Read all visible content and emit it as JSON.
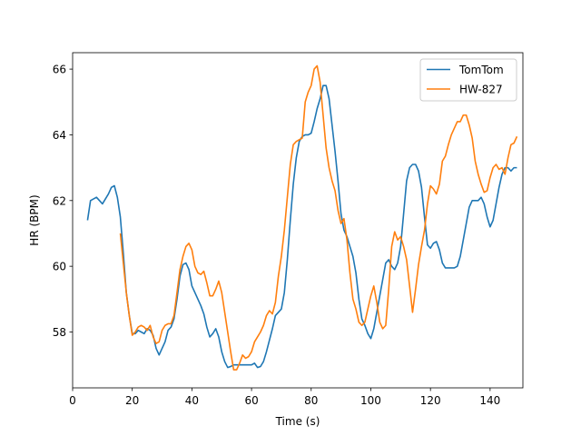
{
  "chart_data": {
    "type": "line",
    "title": "",
    "xlabel": "Time (s)",
    "ylabel": "HR (BPM)",
    "xlim": [
      0,
      151
    ],
    "ylim": [
      56.3,
      66.5
    ],
    "xticks": [
      0,
      20,
      40,
      60,
      80,
      100,
      120,
      140
    ],
    "yticks": [
      58,
      60,
      62,
      64,
      66
    ],
    "grid": false,
    "legend": "top-right",
    "series": [
      {
        "name": "TomTom",
        "color": "#1f77b4",
        "x": [
          5,
          6,
          8,
          10,
          12,
          13,
          14,
          15,
          16,
          17,
          18,
          19,
          20,
          21,
          22,
          23,
          24,
          25,
          26,
          27,
          28,
          29,
          30,
          31,
          32,
          33,
          34,
          35,
          36,
          37,
          38,
          39,
          40,
          41,
          42,
          43,
          44,
          45,
          46,
          47,
          48,
          49,
          50,
          51,
          52,
          53,
          54,
          55,
          56,
          57,
          58,
          59,
          60,
          61,
          62,
          63,
          64,
          65,
          66,
          67,
          68,
          69,
          70,
          71,
          72,
          73,
          74,
          75,
          76,
          77,
          78,
          79,
          80,
          81,
          82,
          83,
          84,
          85,
          86,
          87,
          88,
          89,
          90,
          91,
          92,
          93,
          94,
          95,
          96,
          97,
          98,
          99,
          100,
          101,
          102,
          103,
          104,
          105,
          106,
          107,
          108,
          109,
          110,
          111,
          112,
          113,
          114,
          115,
          116,
          117,
          118,
          119,
          120,
          121,
          122,
          123,
          124,
          125,
          126,
          127,
          128,
          129,
          130,
          131,
          132,
          133,
          134,
          135,
          136,
          137,
          138,
          139,
          140,
          141,
          142,
          143,
          144,
          145,
          146,
          147,
          148,
          149
        ],
        "values": [
          61.4,
          62.0,
          62.1,
          61.9,
          62.2,
          62.4,
          62.45,
          62.1,
          61.5,
          60.4,
          59.2,
          58.5,
          57.95,
          57.95,
          58.05,
          58.0,
          57.95,
          58.1,
          58.05,
          57.9,
          57.5,
          57.3,
          57.5,
          57.7,
          58.05,
          58.15,
          58.4,
          59.0,
          59.7,
          60.05,
          60.1,
          59.9,
          59.4,
          59.2,
          59.0,
          58.8,
          58.55,
          58.15,
          57.85,
          57.95,
          58.1,
          57.85,
          57.4,
          57.1,
          56.92,
          56.95,
          57.0,
          57.0,
          57.0,
          57.0,
          57.0,
          57.0,
          57.0,
          57.05,
          56.92,
          56.95,
          57.1,
          57.4,
          57.75,
          58.1,
          58.5,
          58.6,
          58.7,
          59.2,
          60.2,
          61.4,
          62.5,
          63.3,
          63.8,
          63.95,
          64.0,
          64.0,
          64.05,
          64.4,
          64.8,
          65.1,
          65.5,
          65.5,
          65.1,
          64.3,
          63.5,
          62.6,
          61.6,
          61.1,
          60.9,
          60.6,
          60.3,
          59.8,
          59.0,
          58.4,
          58.2,
          57.95,
          57.8,
          58.1,
          58.6,
          59.1,
          59.6,
          60.1,
          60.2,
          60.0,
          59.9,
          60.1,
          60.6,
          61.6,
          62.6,
          63.0,
          63.1,
          63.1,
          62.9,
          62.4,
          61.5,
          60.65,
          60.55,
          60.7,
          60.75,
          60.5,
          60.1,
          59.95,
          59.95,
          59.95,
          59.95,
          60.0,
          60.3,
          60.8,
          61.3,
          61.8,
          62.0,
          62.0,
          62.0,
          62.1,
          61.9,
          61.5,
          61.2,
          61.4,
          61.9,
          62.4,
          62.8,
          63.0,
          63.0,
          62.9,
          63.0,
          63.0
        ]
      },
      {
        "name": "HW-827",
        "color": "#ff7f0e",
        "x": [
          16,
          17,
          18,
          19,
          20,
          21,
          22,
          23,
          24,
          25,
          26,
          27,
          28,
          29,
          30,
          31,
          32,
          33,
          34,
          35,
          36,
          37,
          38,
          39,
          40,
          41,
          42,
          43,
          44,
          45,
          46,
          47,
          48,
          49,
          50,
          51,
          52,
          53,
          54,
          55,
          56,
          57,
          58,
          59,
          60,
          61,
          62,
          63,
          64,
          65,
          66,
          67,
          68,
          69,
          70,
          71,
          72,
          73,
          74,
          75,
          76,
          77,
          78,
          79,
          80,
          81,
          82,
          83,
          84,
          85,
          86,
          87,
          88,
          89,
          90,
          91,
          92,
          93,
          94,
          95,
          96,
          97,
          98,
          99,
          100,
          101,
          102,
          103,
          104,
          105,
          106,
          107,
          108,
          109,
          110,
          111,
          112,
          113,
          114,
          115,
          116,
          117,
          118,
          119,
          120,
          121,
          122,
          123,
          124,
          125,
          126,
          127,
          128,
          129,
          130,
          131,
          132,
          133,
          134,
          135,
          136,
          137,
          138,
          139,
          140,
          141,
          142,
          143,
          144,
          145,
          146,
          147,
          148,
          149
        ],
        "values": [
          61.0,
          60.1,
          59.2,
          58.5,
          57.9,
          58.0,
          58.15,
          58.2,
          58.15,
          58.05,
          58.2,
          57.85,
          57.65,
          57.7,
          58.05,
          58.2,
          58.25,
          58.25,
          58.5,
          59.2,
          59.9,
          60.3,
          60.6,
          60.7,
          60.5,
          60.0,
          59.8,
          59.75,
          59.85,
          59.5,
          59.1,
          59.1,
          59.3,
          59.55,
          59.2,
          58.6,
          58.0,
          57.4,
          56.85,
          56.85,
          57.05,
          57.3,
          57.2,
          57.25,
          57.4,
          57.7,
          57.85,
          58.0,
          58.2,
          58.5,
          58.65,
          58.55,
          58.9,
          59.7,
          60.3,
          61.1,
          62.1,
          63.1,
          63.7,
          63.8,
          63.85,
          63.9,
          65.0,
          65.3,
          65.5,
          66.0,
          66.1,
          65.6,
          64.6,
          63.6,
          63.0,
          62.6,
          62.3,
          61.7,
          61.3,
          61.45,
          60.8,
          59.8,
          59.0,
          58.7,
          58.3,
          58.2,
          58.3,
          58.7,
          59.1,
          59.4,
          58.9,
          58.3,
          58.1,
          58.2,
          59.3,
          60.6,
          61.05,
          60.8,
          60.9,
          60.6,
          60.2,
          59.4,
          58.6,
          59.3,
          60.05,
          60.6,
          61.1,
          61.9,
          62.45,
          62.35,
          62.2,
          62.5,
          63.2,
          63.35,
          63.7,
          64.0,
          64.2,
          64.4,
          64.4,
          64.6,
          64.6,
          64.3,
          63.9,
          63.2,
          62.8,
          62.5,
          62.25,
          62.3,
          62.7,
          63.0,
          63.1,
          62.95,
          63.0,
          62.8,
          63.3,
          63.7,
          63.75,
          63.95
        ]
      }
    ]
  }
}
